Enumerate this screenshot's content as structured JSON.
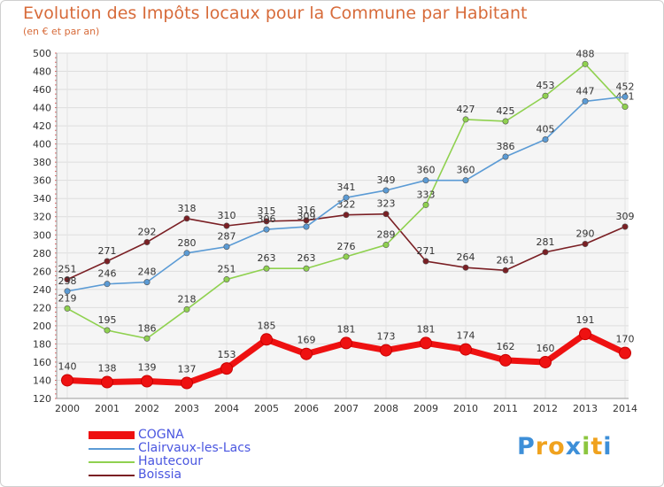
{
  "header": {
    "title": "Evolution des Impôts locaux pour la Commune par Habitant",
    "subtitle": "(en € et par an)"
  },
  "logo": {
    "letters": [
      "P",
      "r",
      "o",
      "x",
      "i",
      "t",
      "i"
    ],
    "colors": [
      "#3d8fd8",
      "#f0a21e",
      "#f0a21e",
      "#3d8fd8",
      "#8cc63f",
      "#f0a21e",
      "#3d8fd8"
    ]
  },
  "chart_data": {
    "type": "line",
    "title": "Evolution des Impôts locaux pour la Commune par Habitant",
    "subtitle": "(en € et par an)",
    "xlabel": "",
    "ylabel": "",
    "categories": [
      "2000",
      "2001",
      "2002",
      "2003",
      "2004",
      "2005",
      "2006",
      "2007",
      "2008",
      "2009",
      "2010",
      "2011",
      "2012",
      "2013",
      "2014"
    ],
    "ylim": [
      120,
      500
    ],
    "yticks": [
      120,
      140,
      160,
      180,
      200,
      220,
      240,
      260,
      280,
      300,
      320,
      340,
      360,
      380,
      400,
      420,
      440,
      460,
      480,
      500
    ],
    "grid": true,
    "legend_position": "bottom-left",
    "series": [
      {
        "name": "Boissia",
        "color": "#7a1f24",
        "values": [
          251,
          271,
          292,
          318,
          310,
          315,
          316,
          322,
          323,
          271,
          264,
          261,
          281,
          290,
          309
        ]
      },
      {
        "name": "Hautecour",
        "color": "#8fd14f",
        "values": [
          219,
          195,
          186,
          218,
          251,
          263,
          263,
          276,
          289,
          333,
          427,
          425,
          453,
          488,
          441
        ]
      },
      {
        "name": "Clairvaux-les-Lacs",
        "color": "#5b9bd5",
        "values": [
          238,
          246,
          248,
          280,
          287,
          306,
          309,
          341,
          349,
          360,
          360,
          386,
          405,
          447,
          452
        ]
      },
      {
        "name": "COGNA",
        "color": "#ee1111",
        "values": [
          140,
          138,
          139,
          137,
          153,
          185,
          169,
          181,
          173,
          181,
          174,
          162,
          160,
          191,
          170
        ]
      }
    ],
    "legend": [
      "COGNA",
      "Clairvaux-les-Lacs",
      "Hautecour",
      "Boissia"
    ]
  }
}
